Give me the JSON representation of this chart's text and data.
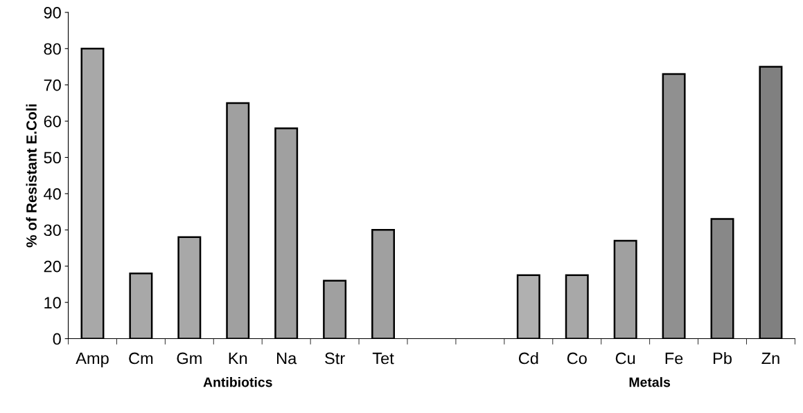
{
  "chart_data": {
    "type": "bar",
    "ylabel": "% of Resistant E.Coli",
    "categories": [
      "Amp",
      "Cm",
      "Gm",
      "Kn",
      "Na",
      "Str",
      "Tet",
      null,
      null,
      "Cd",
      "Co",
      "Cu",
      "Fe",
      "Pb",
      "Zn"
    ],
    "values": [
      80,
      18,
      28,
      65,
      58,
      16,
      30,
      null,
      null,
      17.5,
      17.5,
      27,
      73,
      33,
      75
    ],
    "colors": [
      "#a8a8a8",
      "#a8a8a8",
      "#a8a8a8",
      "#a0a0a0",
      "#a0a0a0",
      "#a0a0a0",
      "#a0a0a0",
      "#a0a0a0",
      "#a0a0a0",
      "#b0b0b0",
      "#a8a8a8",
      "#a0a0a0",
      "#909090",
      "#888888",
      "#808080"
    ],
    "annotations": [
      "Antibiotics",
      "Metals"
    ],
    "ylim": [
      0,
      90
    ],
    "yticks": [
      0,
      10,
      20,
      30,
      40,
      50,
      60,
      70,
      80,
      90
    ],
    "grid": false,
    "legend": false
  }
}
